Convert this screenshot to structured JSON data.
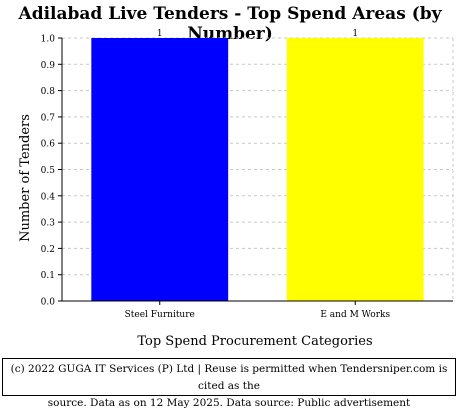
{
  "chart_data": {
    "type": "bar",
    "title": "Adilabad Live Tenders - Top Spend Areas (by Number)",
    "xlabel": "Top Spend Procurement Categories",
    "ylabel": "Number of Tenders",
    "categories": [
      "Steel Furniture",
      "E and M Works"
    ],
    "values": [
      1,
      1
    ],
    "data_labels": [
      "1",
      "1"
    ],
    "colors": [
      "#0000ff",
      "#ffff00"
    ],
    "ylim": [
      0,
      1.0
    ],
    "yticks": [
      "0.0",
      "0.1",
      "0.2",
      "0.3",
      "0.4",
      "0.5",
      "0.6",
      "0.7",
      "0.8",
      "0.9",
      "1.0"
    ],
    "grid": true,
    "legend": "none"
  },
  "footer": {
    "line1": "(c) 2022 GUGA IT Services (P) Ltd | Reuse is permitted when Tendersniper.com is cited as the",
    "line2": "source. Data as on 12 May 2025. Data source: Public advertisement"
  }
}
